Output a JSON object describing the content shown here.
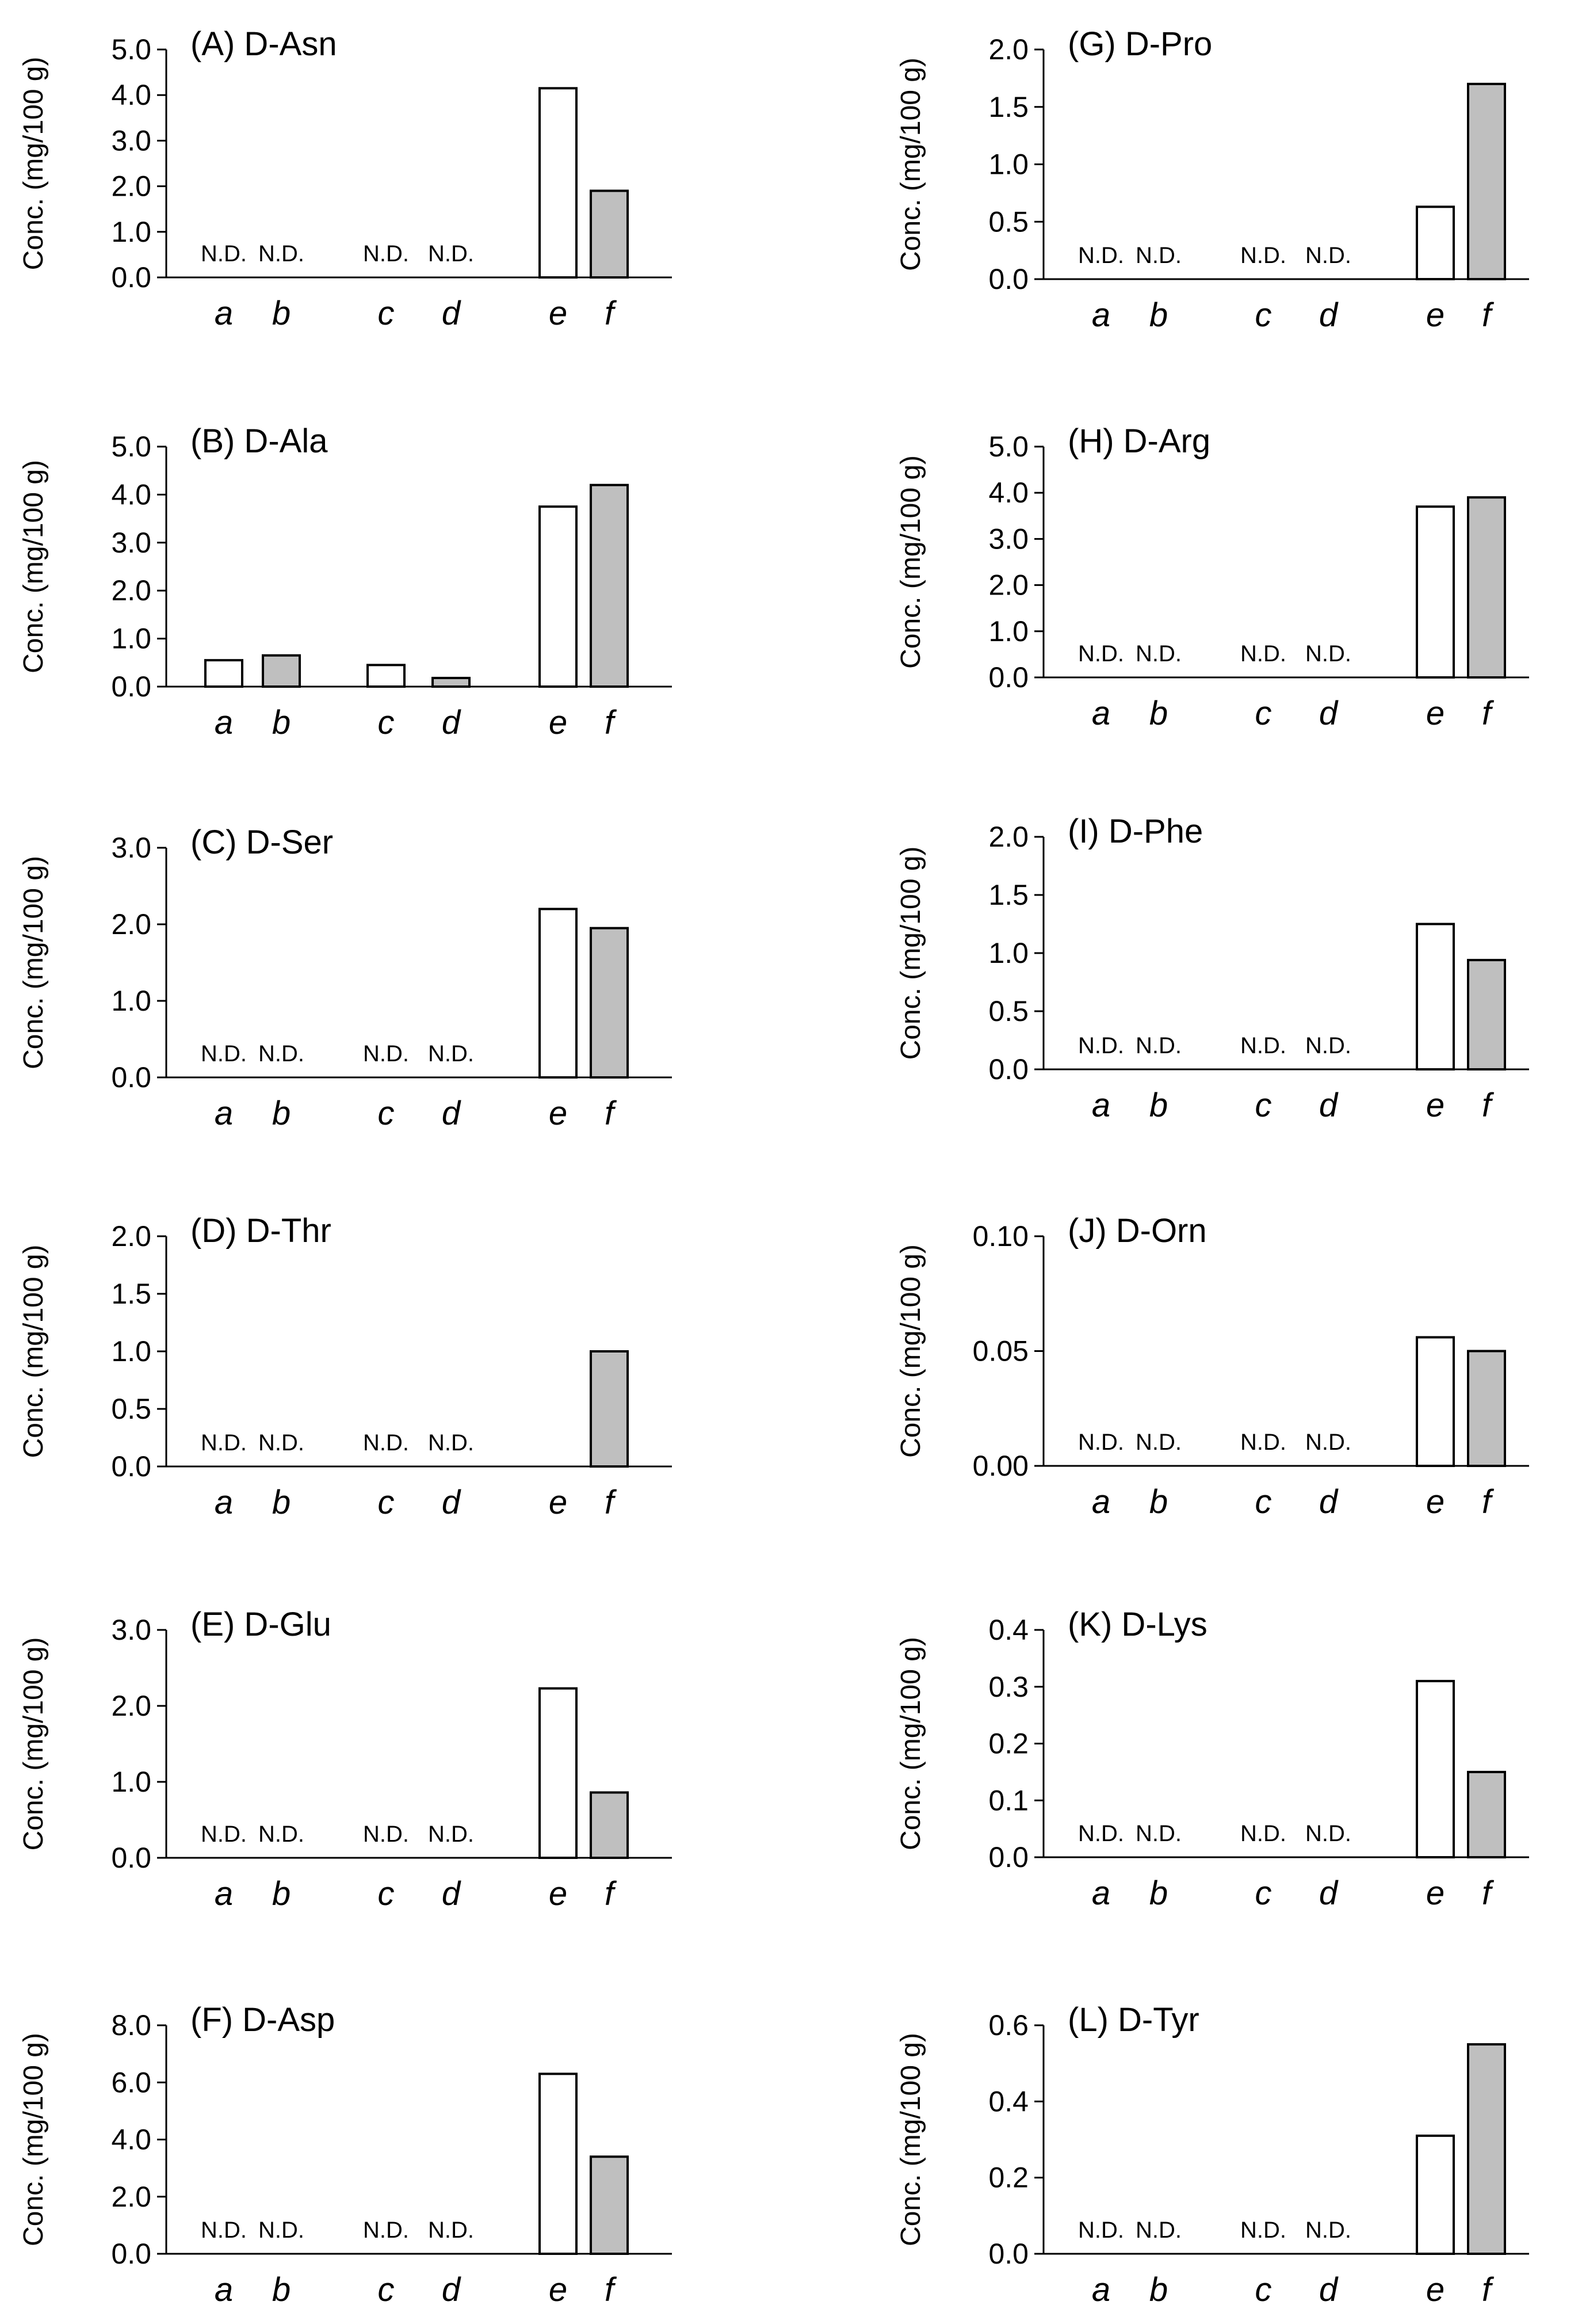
{
  "chart_data": [
    {
      "type": "bar",
      "title": "(A) D-Asn",
      "ylabel": "Conc. (mg/100 g)",
      "ylim": [
        0,
        5.0
      ],
      "yticks": [
        "0.0",
        "1.0",
        "2.0",
        "3.0",
        "4.0",
        "5.0"
      ],
      "categories": [
        "a",
        "b",
        "c",
        "d",
        "e",
        "f"
      ],
      "values": [
        0,
        0,
        0,
        0,
        4.15,
        1.9
      ],
      "labels": [
        "N.D.",
        "N.D.",
        "N.D.",
        "N.D.",
        "",
        ""
      ]
    },
    {
      "type": "bar",
      "title": "(B) D-Ala",
      "ylabel": "Conc. (mg/100 g)",
      "ylim": [
        0,
        5.0
      ],
      "yticks": [
        "0.0",
        "1.0",
        "2.0",
        "3.0",
        "4.0",
        "5.0"
      ],
      "categories": [
        "a",
        "b",
        "c",
        "d",
        "e",
        "f"
      ],
      "values": [
        0.55,
        0.65,
        0.45,
        0.18,
        3.75,
        4.2
      ],
      "labels": [
        "",
        "",
        "",
        "",
        "",
        ""
      ]
    },
    {
      "type": "bar",
      "title": "(C) D-Ser",
      "ylabel": "Conc. (mg/100 g)",
      "ylim": [
        0,
        3.0
      ],
      "yticks": [
        "0.0",
        "1.0",
        "2.0",
        "3.0"
      ],
      "categories": [
        "a",
        "b",
        "c",
        "d",
        "e",
        "f"
      ],
      "values": [
        0,
        0,
        0,
        0,
        2.2,
        1.95
      ],
      "labels": [
        "N.D.",
        "N.D.",
        "N.D.",
        "N.D.",
        "",
        ""
      ]
    },
    {
      "type": "bar",
      "title": "(D) D-Thr",
      "ylabel": "Conc. (mg/100 g)",
      "ylim": [
        0,
        2.0
      ],
      "yticks": [
        "0.0",
        "0.5",
        "1.0",
        "1.5",
        "2.0"
      ],
      "categories": [
        "a",
        "b",
        "c",
        "d",
        "e",
        "f"
      ],
      "values": [
        0,
        0,
        0,
        0,
        0,
        1.0
      ],
      "labels": [
        "N.D.",
        "N.D.",
        "N.D.",
        "N.D.",
        "",
        ""
      ]
    },
    {
      "type": "bar",
      "title": "(E) D-Glu",
      "ylabel": "Conc. (mg/100 g)",
      "ylim": [
        0,
        3.0
      ],
      "yticks": [
        "0.0",
        "1.0",
        "2.0",
        "3.0"
      ],
      "categories": [
        "a",
        "b",
        "c",
        "d",
        "e",
        "f"
      ],
      "values": [
        0,
        0,
        0,
        0,
        2.23,
        0.86
      ],
      "labels": [
        "N.D.",
        "N.D.",
        "N.D.",
        "N.D.",
        "",
        ""
      ]
    },
    {
      "type": "bar",
      "title": "(F) D-Asp",
      "ylabel": "Conc. (mg/100 g)",
      "ylim": [
        0,
        8.0
      ],
      "yticks": [
        "0.0",
        "2.0",
        "4.0",
        "6.0",
        "8.0"
      ],
      "categories": [
        "a",
        "b",
        "c",
        "d",
        "e",
        "f"
      ],
      "values": [
        0,
        0,
        0,
        0,
        6.3,
        3.4
      ],
      "labels": [
        "N.D.",
        "N.D.",
        "N.D.",
        "N.D.",
        "",
        ""
      ]
    },
    {
      "type": "bar",
      "title": "(G) D-Pro",
      "ylabel": "Conc. (mg/100 g)",
      "ylim": [
        0,
        2.0
      ],
      "yticks": [
        "0.0",
        "0.5",
        "1.0",
        "1.5",
        "2.0"
      ],
      "categories": [
        "a",
        "b",
        "c",
        "d",
        "e",
        "f"
      ],
      "values": [
        0,
        0,
        0,
        0,
        0.63,
        1.7
      ],
      "labels": [
        "N.D.",
        "N.D.",
        "N.D.",
        "N.D.",
        "",
        ""
      ]
    },
    {
      "type": "bar",
      "title": "(H) D-Arg",
      "ylabel": "Conc. (mg/100 g)",
      "ylim": [
        0,
        5.0
      ],
      "yticks": [
        "0.0",
        "1.0",
        "2.0",
        "3.0",
        "4.0",
        "5.0"
      ],
      "categories": [
        "a",
        "b",
        "c",
        "d",
        "e",
        "f"
      ],
      "values": [
        0,
        0,
        0,
        0,
        3.7,
        3.9
      ],
      "labels": [
        "N.D.",
        "N.D.",
        "N.D.",
        "N.D.",
        "",
        ""
      ]
    },
    {
      "type": "bar",
      "title": "(I) D-Phe",
      "ylabel": "Conc. (mg/100 g)",
      "ylim": [
        0,
        2.0
      ],
      "yticks": [
        "0.0",
        "0.5",
        "1.0",
        "1.5",
        "2.0"
      ],
      "categories": [
        "a",
        "b",
        "c",
        "d",
        "e",
        "f"
      ],
      "values": [
        0,
        0,
        0,
        0,
        1.25,
        0.94
      ],
      "labels": [
        "N.D.",
        "N.D.",
        "N.D.",
        "N.D.",
        "",
        ""
      ]
    },
    {
      "type": "bar",
      "title": "(J) D-Orn",
      "ylabel": "Conc. (mg/100 g)",
      "ylim": [
        0,
        0.1
      ],
      "yticks": [
        "0.00",
        "0.05",
        "0.10"
      ],
      "categories": [
        "a",
        "b",
        "c",
        "d",
        "e",
        "f"
      ],
      "values": [
        0,
        0,
        0,
        0,
        0.056,
        0.05
      ],
      "labels": [
        "N.D.",
        "N.D.",
        "N.D.",
        "N.D.",
        "",
        ""
      ]
    },
    {
      "type": "bar",
      "title": "(K) D-Lys",
      "ylabel": "Conc. (mg/100 g)",
      "ylim": [
        0,
        0.4
      ],
      "yticks": [
        "0.0",
        "0.1",
        "0.2",
        "0.3",
        "0.4"
      ],
      "categories": [
        "a",
        "b",
        "c",
        "d",
        "e",
        "f"
      ],
      "values": [
        0,
        0,
        0,
        0,
        0.31,
        0.15
      ],
      "labels": [
        "N.D.",
        "N.D.",
        "N.D.",
        "N.D.",
        "",
        ""
      ]
    },
    {
      "type": "bar",
      "title": "(L) D-Tyr",
      "ylabel": "Conc. (mg/100 g)",
      "ylim": [
        0,
        0.6
      ],
      "yticks": [
        "0.0",
        "0.2",
        "0.4",
        "0.6"
      ],
      "categories": [
        "a",
        "b",
        "c",
        "d",
        "e",
        "f"
      ],
      "values": [
        0,
        0,
        0,
        0,
        0.31,
        0.55
      ],
      "labels": [
        "N.D.",
        "N.D.",
        "N.D.",
        "N.D.",
        "",
        ""
      ]
    }
  ],
  "colors": {
    "white_bar": "#ffffff",
    "gray_bar": "#bfbfbf",
    "ink": "#000000"
  }
}
